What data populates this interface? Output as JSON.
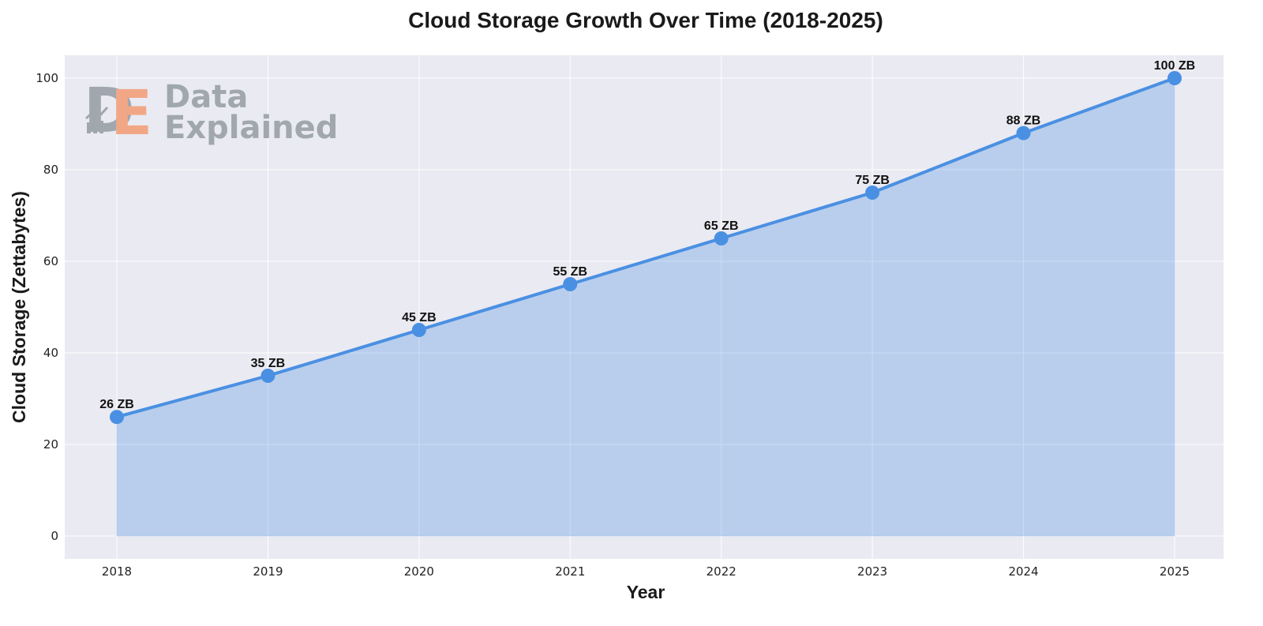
{
  "chart_data": {
    "type": "area",
    "title": "Cloud Storage Growth Over Time (2018-2025)",
    "xlabel": "Year",
    "ylabel": "Cloud Storage (Zettabytes)",
    "x": [
      "2018",
      "2019",
      "2020",
      "2021",
      "2022",
      "2023",
      "2024",
      "2025"
    ],
    "series": [
      {
        "values": [
          26,
          35,
          45,
          55,
          65,
          75,
          88,
          100
        ],
        "labels": [
          "26 ZB",
          "35 ZB",
          "45 ZB",
          "55 ZB",
          "65 ZB",
          "75 ZB",
          "88 ZB",
          "100 ZB"
        ]
      }
    ],
    "ylim": [
      -5,
      105
    ],
    "yticks": [
      "0",
      "20",
      "40",
      "60",
      "80",
      "100"
    ],
    "grid": true,
    "line_color": "#4a90e2",
    "fill_color": "#4a90e2",
    "background_color": "#eaeaf2"
  },
  "watermark": {
    "logo_letters": [
      "D",
      "E"
    ],
    "lines": [
      "Data",
      "Explained"
    ],
    "text_color": "#9aa0a8",
    "accent_color": "#f2a07b"
  }
}
